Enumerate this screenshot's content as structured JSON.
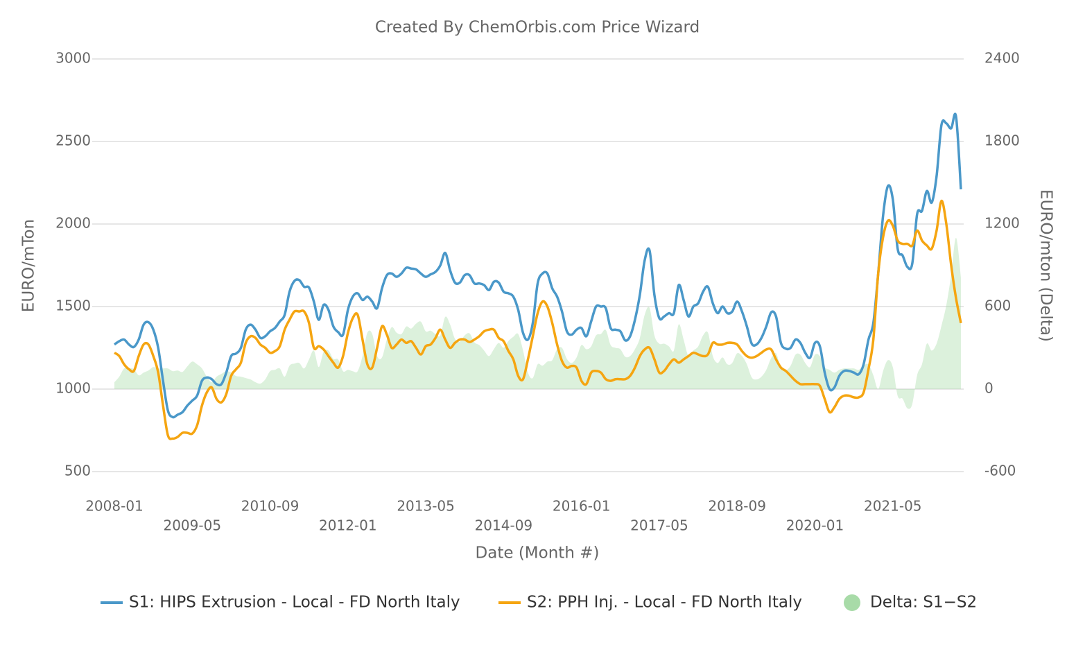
{
  "chart_data": {
    "type": "line",
    "title": "Created By ChemOrbis.com Price Wizard",
    "x_label": "Date (Month #)",
    "y_label": "EURO/mTon",
    "y2_label": "EURO/mton (Delta)",
    "categories": [
      "2008-01",
      "2008-02",
      "2008-03",
      "2008-04",
      "2008-05",
      "2008-06",
      "2008-07",
      "2008-08",
      "2008-09",
      "2008-10",
      "2008-11",
      "2008-12",
      "2009-01",
      "2009-02",
      "2009-03",
      "2009-04",
      "2009-05",
      "2009-06",
      "2009-07",
      "2009-08",
      "2009-09",
      "2009-10",
      "2009-11",
      "2009-12",
      "2010-01",
      "2010-02",
      "2010-03",
      "2010-04",
      "2010-05",
      "2010-06",
      "2010-07",
      "2010-08",
      "2010-09",
      "2010-10",
      "2010-11",
      "2010-12",
      "2011-01",
      "2011-02",
      "2011-03",
      "2011-04",
      "2011-05",
      "2011-06",
      "2011-07",
      "2011-08",
      "2011-09",
      "2011-10",
      "2011-11",
      "2011-12",
      "2012-01",
      "2012-02",
      "2012-03",
      "2012-04",
      "2012-05",
      "2012-06",
      "2012-07",
      "2012-08",
      "2012-09",
      "2012-10",
      "2012-11",
      "2012-12",
      "2013-01",
      "2013-02",
      "2013-03",
      "2013-04",
      "2013-05",
      "2013-06",
      "2013-07",
      "2013-08",
      "2013-09",
      "2013-10",
      "2013-11",
      "2013-12",
      "2014-01",
      "2014-02",
      "2014-03",
      "2014-04",
      "2014-05",
      "2014-06",
      "2014-07",
      "2014-08",
      "2014-09",
      "2014-10",
      "2014-11",
      "2014-12",
      "2015-01",
      "2015-02",
      "2015-03",
      "2015-04",
      "2015-05",
      "2015-06",
      "2015-07",
      "2015-08",
      "2015-09",
      "2015-10",
      "2015-11",
      "2015-12",
      "2016-01",
      "2016-02",
      "2016-03",
      "2016-04",
      "2016-05",
      "2016-06",
      "2016-07",
      "2016-08",
      "2016-09",
      "2016-10",
      "2016-11",
      "2016-12",
      "2017-01",
      "2017-02",
      "2017-03",
      "2017-04",
      "2017-05",
      "2017-06",
      "2017-07",
      "2017-08",
      "2017-09",
      "2017-10",
      "2017-11",
      "2017-12",
      "2018-01",
      "2018-02",
      "2018-03",
      "2018-04",
      "2018-05",
      "2018-06",
      "2018-07",
      "2018-08",
      "2018-09",
      "2018-10",
      "2018-11",
      "2018-12",
      "2019-01",
      "2019-02",
      "2019-03",
      "2019-04",
      "2019-05",
      "2019-06",
      "2019-07",
      "2019-08",
      "2019-09",
      "2019-10",
      "2019-11",
      "2019-12",
      "2020-01",
      "2020-02",
      "2020-03",
      "2020-04",
      "2020-05",
      "2020-06",
      "2020-07",
      "2020-08",
      "2020-09",
      "2020-10",
      "2020-11",
      "2020-12",
      "2021-01",
      "2021-02",
      "2021-03",
      "2021-04",
      "2021-05",
      "2021-06",
      "2021-07",
      "2021-08",
      "2021-09",
      "2021-10",
      "2021-11",
      "2021-12",
      "2022-01",
      "2022-02",
      "2022-03",
      "2022-04",
      "2022-05",
      "2022-06",
      "2022-07"
    ],
    "xticks": [
      "2008-01",
      "2009-05",
      "2010-09",
      "2012-01",
      "2013-05",
      "2014-09",
      "2016-01",
      "2017-05",
      "2018-09",
      "2020-01",
      "2021-05"
    ],
    "series": [
      {
        "name": "S1: HIPS Extrusion - Local - FD North Italy",
        "color": "#4a98c9",
        "kind": "line",
        "values": [
          1270,
          1290,
          1300,
          1270,
          1255,
          1300,
          1390,
          1405,
          1360,
          1250,
          1050,
          870,
          830,
          845,
          860,
          900,
          930,
          960,
          1050,
          1070,
          1060,
          1030,
          1030,
          1100,
          1200,
          1215,
          1250,
          1360,
          1390,
          1360,
          1310,
          1320,
          1350,
          1370,
          1410,
          1450,
          1590,
          1655,
          1660,
          1620,
          1615,
          1530,
          1420,
          1510,
          1480,
          1380,
          1345,
          1330,
          1480,
          1560,
          1580,
          1540,
          1560,
          1530,
          1490,
          1610,
          1690,
          1700,
          1680,
          1700,
          1735,
          1730,
          1725,
          1700,
          1680,
          1695,
          1710,
          1750,
          1825,
          1720,
          1645,
          1645,
          1690,
          1690,
          1640,
          1640,
          1630,
          1600,
          1650,
          1645,
          1590,
          1580,
          1560,
          1480,
          1340,
          1300,
          1400,
          1640,
          1700,
          1700,
          1610,
          1560,
          1470,
          1350,
          1330,
          1360,
          1370,
          1320,
          1410,
          1500,
          1500,
          1490,
          1370,
          1360,
          1350,
          1295,
          1320,
          1420,
          1570,
          1780,
          1840,
          1570,
          1430,
          1440,
          1460,
          1460,
          1630,
          1540,
          1440,
          1500,
          1520,
          1590,
          1620,
          1520,
          1460,
          1500,
          1460,
          1470,
          1530,
          1470,
          1380,
          1275,
          1270,
          1310,
          1380,
          1465,
          1440,
          1280,
          1245,
          1250,
          1300,
          1280,
          1220,
          1190,
          1280,
          1260,
          1100,
          1000,
          1010,
          1080,
          1110,
          1110,
          1100,
          1090,
          1150,
          1300,
          1400,
          1700,
          2050,
          2230,
          2150,
          1850,
          1810,
          1740,
          1760,
          2060,
          2080,
          2200,
          2130,
          2290,
          2600,
          2610,
          2580,
          2650,
          2210
        ]
      },
      {
        "name": "S2: PPH Inj. - Local - FD North Italy",
        "color": "#f5a511",
        "kind": "line",
        "values": [
          1220,
          1200,
          1150,
          1120,
          1110,
          1200,
          1270,
          1270,
          1200,
          1100,
          900,
          720,
          700,
          710,
          735,
          735,
          730,
          780,
          900,
          980,
          1010,
          940,
          920,
          970,
          1080,
          1120,
          1160,
          1280,
          1320,
          1310,
          1270,
          1250,
          1220,
          1230,
          1260,
          1360,
          1420,
          1470,
          1470,
          1470,
          1400,
          1250,
          1260,
          1240,
          1200,
          1160,
          1130,
          1200,
          1340,
          1430,
          1450,
          1300,
          1150,
          1130,
          1250,
          1380,
          1330,
          1250,
          1270,
          1300,
          1280,
          1290,
          1250,
          1210,
          1260,
          1270,
          1310,
          1360,
          1300,
          1250,
          1280,
          1300,
          1300,
          1285,
          1300,
          1320,
          1350,
          1360,
          1360,
          1310,
          1290,
          1230,
          1180,
          1080,
          1060,
          1180,
          1320,
          1460,
          1530,
          1500,
          1400,
          1270,
          1170,
          1130,
          1140,
          1130,
          1050,
          1030,
          1100,
          1110,
          1100,
          1060,
          1050,
          1060,
          1060,
          1060,
          1080,
          1130,
          1200,
          1240,
          1250,
          1180,
          1100,
          1110,
          1150,
          1180,
          1160,
          1180,
          1200,
          1220,
          1210,
          1200,
          1210,
          1280,
          1270,
          1270,
          1280,
          1280,
          1270,
          1230,
          1200,
          1190,
          1200,
          1220,
          1240,
          1240,
          1180,
          1130,
          1110,
          1080,
          1050,
          1030,
          1030,
          1030,
          1030,
          1020,
          940,
          860,
          890,
          940,
          960,
          960,
          950,
          950,
          980,
          1120,
          1300,
          1700,
          1920,
          2020,
          1990,
          1900,
          1880,
          1880,
          1870,
          1960,
          1900,
          1870,
          1850,
          1960,
          2140,
          2000,
          1750,
          1550,
          1400
        ]
      },
      {
        "name": "Delta: S1−S2",
        "color": "#a8dba8",
        "kind": "area",
        "axis": "y2",
        "values": [
          50,
          90,
          150,
          150,
          145,
          100,
          120,
          135,
          160,
          150,
          150,
          150,
          130,
          135,
          125,
          165,
          200,
          180,
          150,
          90,
          50,
          90,
          110,
          130,
          120,
          95,
          90,
          80,
          70,
          50,
          40,
          70,
          130,
          140,
          150,
          90,
          170,
          185,
          190,
          150,
          215,
          280,
          160,
          270,
          280,
          220,
          215,
          130,
          140,
          130,
          130,
          240,
          410,
          400,
          240,
          230,
          360,
          450,
          410,
          400,
          455,
          440,
          475,
          490,
          420,
          425,
          400,
          390,
          525,
          470,
          365,
          345,
          390,
          405,
          340,
          320,
          280,
          240,
          290,
          335,
          300,
          350,
          380,
          400,
          280,
          120,
          80,
          180,
          170,
          200,
          210,
          290,
          300,
          220,
          190,
          230,
          320,
          290,
          310,
          390,
          400,
          430,
          320,
          300,
          290,
          235,
          240,
          290,
          370,
          540,
          590,
          390,
          330,
          330,
          310,
          280,
          470,
          360,
          240,
          280,
          310,
          390,
          410,
          240,
          190,
          230,
          180,
          190,
          260,
          240,
          180,
          85,
          70,
          90,
          140,
          225,
          260,
          150,
          135,
          170,
          250,
          250,
          190,
          160,
          250,
          240,
          160,
          140,
          120,
          140,
          150,
          150,
          150,
          140,
          170,
          180,
          100,
          0,
          130,
          210,
          160,
          -50,
          -70,
          -140,
          -110,
          100,
          180,
          330,
          280,
          330,
          460,
          610,
          830,
          1100,
          810
        ]
      }
    ],
    "ylim": [
      500,
      3000
    ],
    "yticks": [
      500,
      1000,
      1500,
      2000,
      2500,
      3000
    ],
    "y2lim": [
      -600,
      2400
    ],
    "y2ticks": [
      -600,
      0,
      600,
      1200,
      1800,
      2400
    ],
    "grid": true,
    "legend": "bottom"
  }
}
